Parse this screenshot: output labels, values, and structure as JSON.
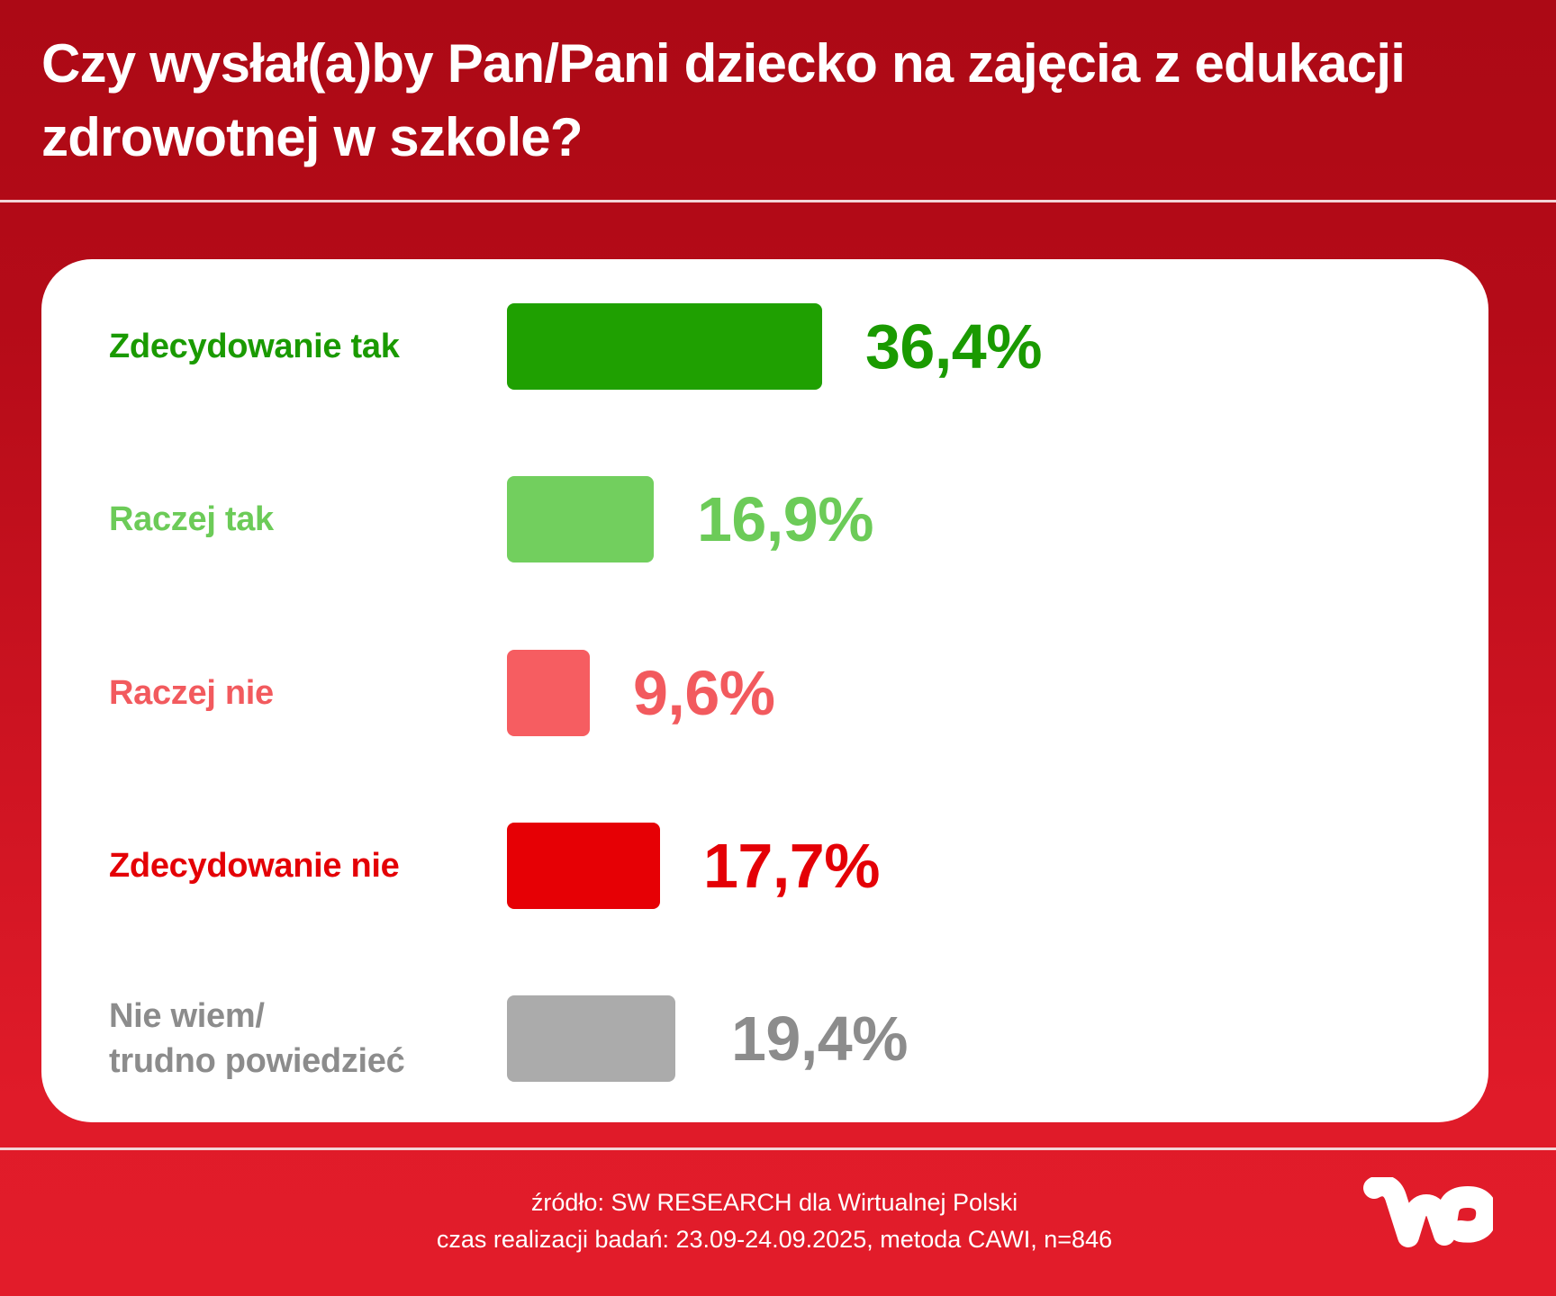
{
  "header": {
    "title_line1": "Czy wysłał(a)by Pan/Pani dziecko na zajęcia z edukacji",
    "title_line2": "zdrowotnej w szkole?"
  },
  "rows": [
    {
      "label": "Zdecydowanie tak",
      "value_text": "36,4%",
      "value": 36.4,
      "color": "#1FA001",
      "text_color": "#1A9A00"
    },
    {
      "label": "Raczej tak",
      "value_text": "16,9%",
      "value": 16.9,
      "color": "#72CF5E",
      "text_color": "#6CCB58"
    },
    {
      "label": "Raczej nie",
      "value_text": "9,6%",
      "value": 9.6,
      "color": "#F65D61",
      "text_color": "#F25A5E"
    },
    {
      "label": "Zdecydowanie nie",
      "value_text": "17,7%",
      "value": 17.7,
      "color": "#E60005",
      "text_color": "#E40006"
    },
    {
      "label_line1": "Nie wiem/",
      "label_line2": "trudno powiedzieć",
      "label": "Nie wiem/ trudno powiedzieć",
      "value_text": "19,4%",
      "value": 19.4,
      "color": "#ABABAB",
      "text_color": "#8C8C8C"
    }
  ],
  "footer": {
    "source": "źródło: SW RESEARCH dla Wirtualnej Polski",
    "method": "czas realizacji badań: 23.09-24.09.2025, metoda CAWI, n=846"
  },
  "logo": {
    "name": "WP",
    "icon": "wp-logo-icon"
  },
  "colors": {
    "bg_top": "#AC0915",
    "bg_bottom": "#E21C2A",
    "card": "#FFFFFF"
  },
  "chart_data": {
    "type": "bar",
    "orientation": "horizontal",
    "title": "Czy wysłał(a)by Pan/Pani dziecko na zajęcia z edukacji zdrowotnej w szkole?",
    "categories": [
      "Zdecydowanie tak",
      "Raczej tak",
      "Raczej nie",
      "Zdecydowanie nie",
      "Nie wiem/ trudno powiedzieć"
    ],
    "values": [
      36.4,
      16.9,
      9.6,
      17.7,
      19.4
    ],
    "unit": "%",
    "colors": [
      "#1FA001",
      "#72CF5E",
      "#F65D61",
      "#E60005",
      "#ABABAB"
    ],
    "xlabel": "",
    "ylabel": "",
    "grid": false,
    "legend": "none",
    "data_labels": [
      "36,4%",
      "16,9%",
      "9,6%",
      "17,7%",
      "19,4%"
    ],
    "source": "źródło: SW RESEARCH dla Wirtualnej Polski",
    "note": "czas realizacji badań: 23.09-24.09.2025, metoda CAWI, n=846"
  }
}
